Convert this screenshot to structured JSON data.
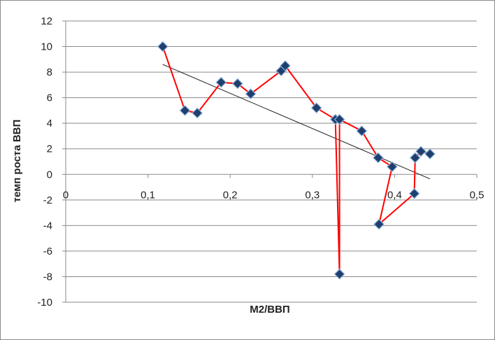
{
  "chart_data": {
    "type": "scatter",
    "title": "",
    "xlabel": "M2/ВВП",
    "ylabel": "темп роста ВВП",
    "xlim": [
      0,
      0.5
    ],
    "ylim": [
      -10,
      12
    ],
    "x_ticks": [
      0,
      0.1,
      0.2,
      0.3,
      0.4,
      0.5
    ],
    "x_tick_labels": [
      "0",
      "0,1",
      "0,2",
      "0,3",
      "0,4",
      "0,5"
    ],
    "y_ticks": [
      -10,
      -8,
      -6,
      -4,
      -2,
      0,
      2,
      4,
      6,
      8,
      10,
      12
    ],
    "y_tick_labels": [
      "-10",
      "-8",
      "-6",
      "-4",
      "-2",
      "0",
      "2",
      "4",
      "6",
      "8",
      "10",
      "12"
    ],
    "grid": "horizontal",
    "legend": "none",
    "series": [
      {
        "color": "#ff0000",
        "marker": "diamond",
        "marker_color": "#1f3f6e",
        "connected": true,
        "points": [
          [
            0.118,
            10.0
          ],
          [
            0.145,
            5.0
          ],
          [
            0.16,
            4.8
          ],
          [
            0.189,
            7.2
          ],
          [
            0.209,
            7.1
          ],
          [
            0.225,
            6.3
          ],
          [
            0.262,
            8.1
          ],
          [
            0.267,
            8.5
          ],
          [
            0.305,
            5.2
          ],
          [
            0.328,
            4.3
          ],
          [
            0.333,
            -7.8
          ],
          [
            0.333,
            4.3
          ],
          [
            0.36,
            3.4
          ],
          [
            0.38,
            1.3
          ],
          [
            0.397,
            0.6
          ],
          [
            0.381,
            -3.9
          ],
          [
            0.424,
            -1.5
          ],
          [
            0.425,
            1.3
          ],
          [
            0.432,
            1.8
          ],
          [
            0.443,
            1.6
          ]
        ]
      }
    ],
    "trendline": {
      "type": "linear",
      "color": "#222222",
      "x_start": 0.118,
      "x_end": 0.443,
      "y_start": 8.6,
      "y_end": -0.35
    }
  }
}
